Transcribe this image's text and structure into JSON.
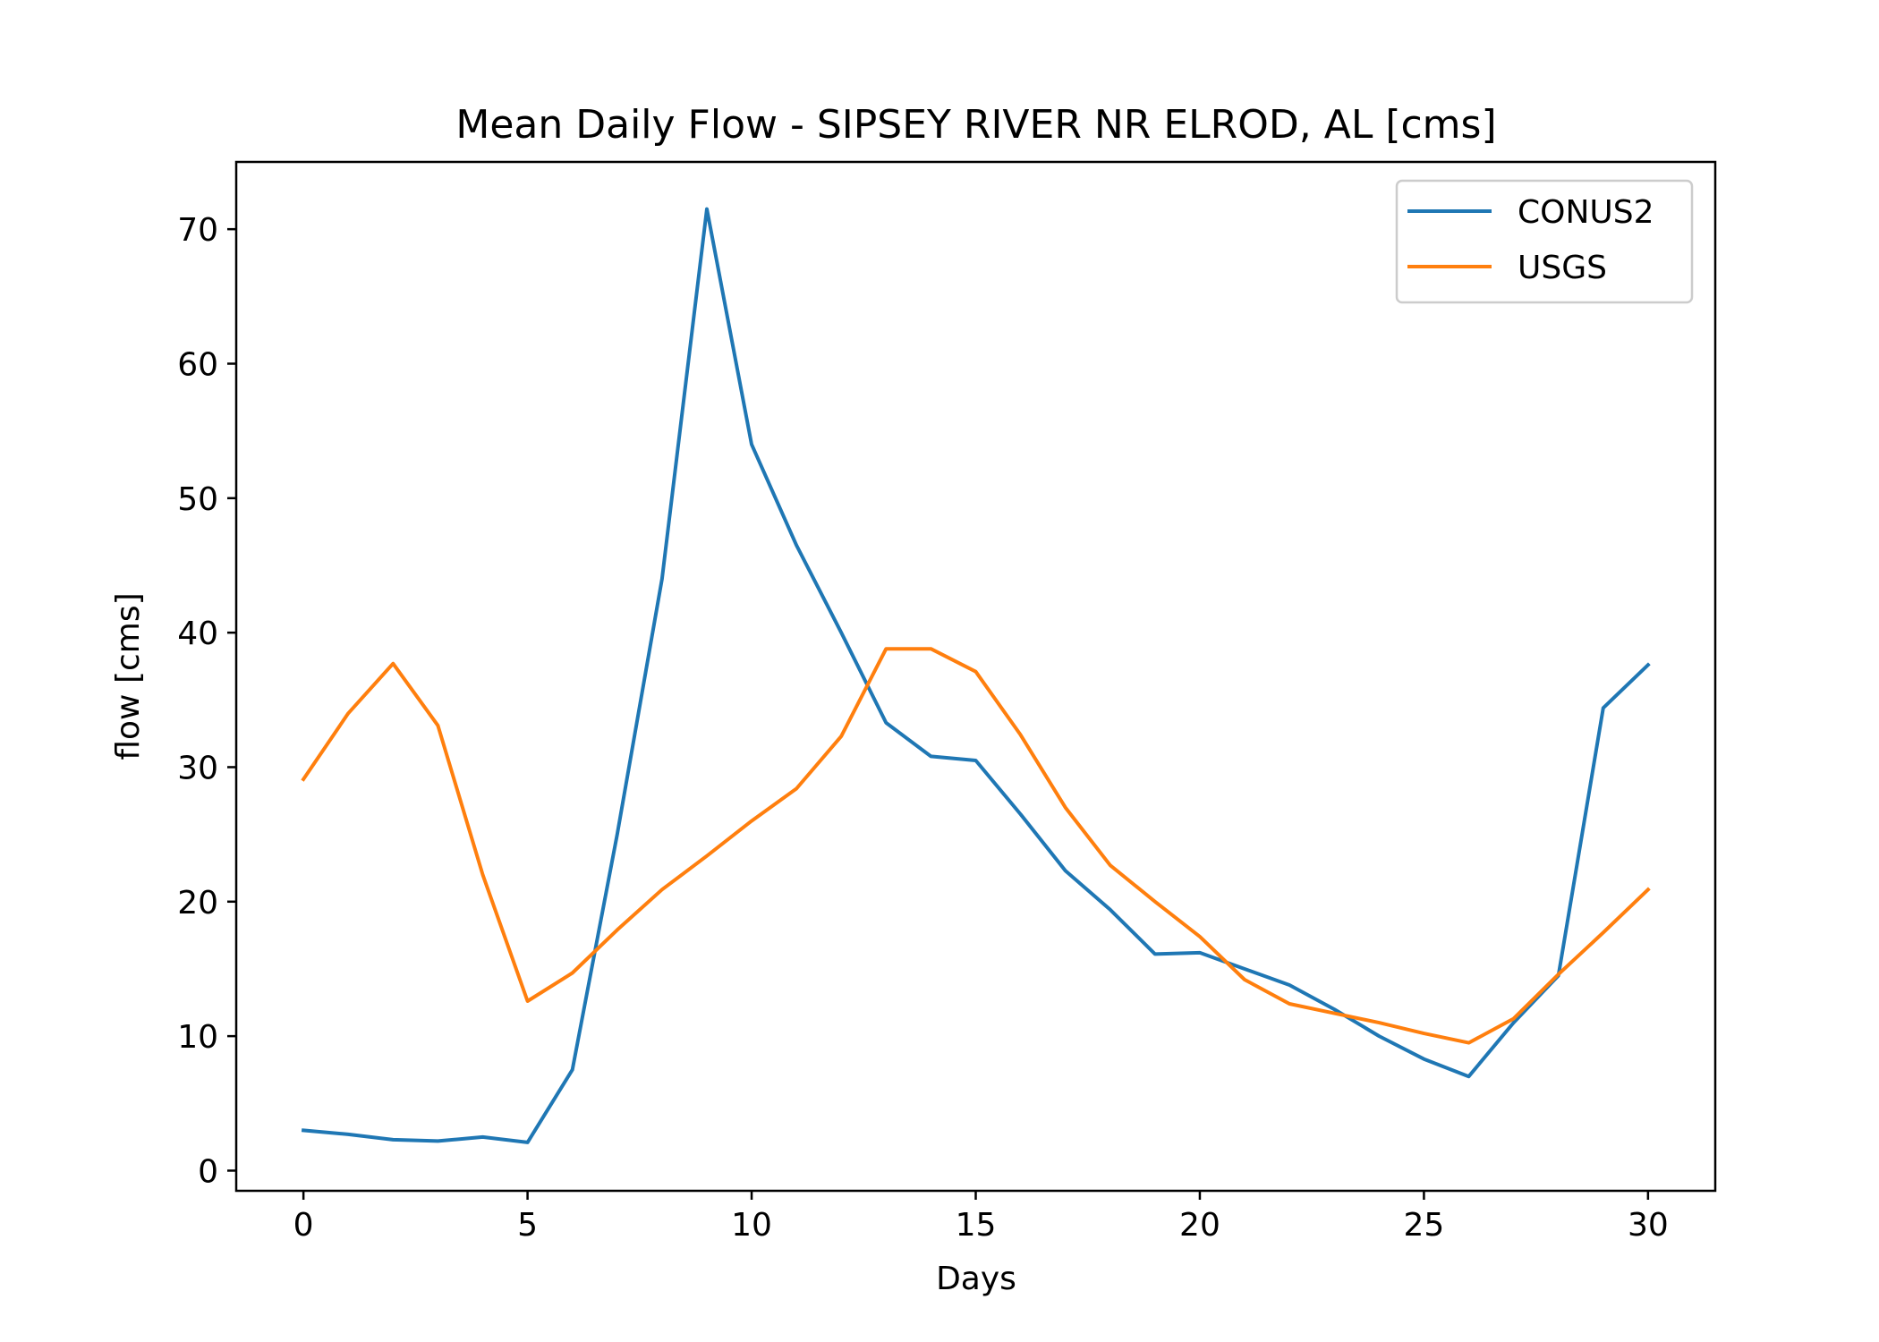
{
  "chart_data": {
    "type": "line",
    "title": "Mean Daily Flow - SIPSEY RIVER NR ELROD, AL [cms]",
    "xlabel": "Days",
    "ylabel": "flow [cms]",
    "xlim": [
      -1.5,
      31.5
    ],
    "ylim": [
      -1.5,
      75
    ],
    "xticks": [
      0,
      5,
      10,
      15,
      20,
      25,
      30
    ],
    "yticks": [
      0,
      10,
      20,
      30,
      40,
      50,
      60,
      70
    ],
    "grid": false,
    "legend_position": "upper right",
    "x": [
      0,
      1,
      2,
      3,
      4,
      5,
      6,
      7,
      8,
      9,
      10,
      11,
      12,
      13,
      14,
      15,
      16,
      17,
      18,
      19,
      20,
      21,
      22,
      23,
      24,
      25,
      26,
      27,
      28,
      29,
      30
    ],
    "series": [
      {
        "name": "CONUS2",
        "color": "#1f77b4",
        "values": [
          3.0,
          2.7,
          2.3,
          2.2,
          2.5,
          2.1,
          7.5,
          25.0,
          44.0,
          71.5,
          54.0,
          46.5,
          40.0,
          33.3,
          30.8,
          30.5,
          26.5,
          22.3,
          19.4,
          16.1,
          16.2,
          15.0,
          13.8,
          12.0,
          10.0,
          8.3,
          7.0,
          11.0,
          14.5,
          34.4,
          37.6
        ]
      },
      {
        "name": "USGS",
        "color": "#ff7f0e",
        "values": [
          29.1,
          34.0,
          37.7,
          33.1,
          22.0,
          12.6,
          14.7,
          17.9,
          20.9,
          23.4,
          26.0,
          28.4,
          32.3,
          38.8,
          38.8,
          37.1,
          32.4,
          27.0,
          22.7,
          20.0,
          17.4,
          14.2,
          12.4,
          11.7,
          11.0,
          10.2,
          9.5,
          11.3,
          14.6,
          17.7,
          20.9
        ]
      }
    ]
  }
}
